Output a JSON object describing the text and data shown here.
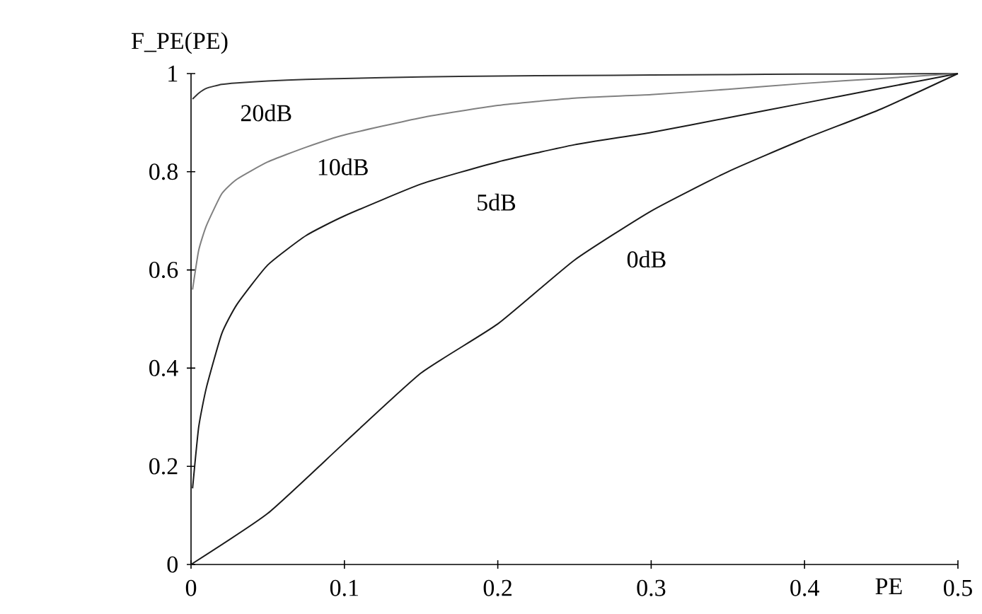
{
  "chart_data": {
    "type": "line",
    "xlabel": "PE",
    "ylabel": "F_PE(PE)",
    "xlim": [
      0,
      0.5
    ],
    "ylim": [
      0,
      1
    ],
    "xticks": [
      0,
      0.1,
      0.2,
      0.3,
      0.4,
      0.5
    ],
    "yticks": [
      0,
      0.2,
      0.4,
      0.6,
      0.8,
      1
    ],
    "grid": false,
    "legend": false,
    "marker": "none",
    "line_style": "solid",
    "x": [
      0.001,
      0.005,
      0.01,
      0.02,
      0.03,
      0.05,
      0.075,
      0.1,
      0.15,
      0.2,
      0.25,
      0.3,
      0.35,
      0.4,
      0.45,
      0.5
    ],
    "series": [
      {
        "name": "20dB",
        "color": "#333333",
        "values": [
          0.948,
          0.96,
          0.97,
          0.978,
          0.981,
          0.985,
          0.988,
          0.99,
          0.993,
          0.995,
          0.996,
          0.997,
          0.998,
          0.999,
          0.999,
          1
        ]
      },
      {
        "name": "10dB",
        "color": "#808080",
        "values": [
          0.56,
          0.64,
          0.69,
          0.755,
          0.785,
          0.82,
          0.85,
          0.875,
          0.91,
          0.935,
          0.95,
          0.957,
          0.968,
          0.98,
          0.99,
          1
        ]
      },
      {
        "name": "5dB",
        "color": "#1a1a1a",
        "values": [
          0.155,
          0.28,
          0.36,
          0.47,
          0.53,
          0.61,
          0.67,
          0.71,
          0.775,
          0.82,
          0.855,
          0.88,
          0.91,
          0.94,
          0.97,
          1
        ]
      },
      {
        "name": "0dB",
        "color": "#1a1a1a",
        "x": [
          0,
          0.05,
          0.1,
          0.15,
          0.2,
          0.25,
          0.3,
          0.35,
          0.4,
          0.45,
          0.5
        ],
        "values": [
          0,
          0.104,
          0.248,
          0.39,
          0.49,
          0.62,
          0.72,
          0.8,
          0.867,
          0.928,
          1
        ]
      }
    ]
  }
}
